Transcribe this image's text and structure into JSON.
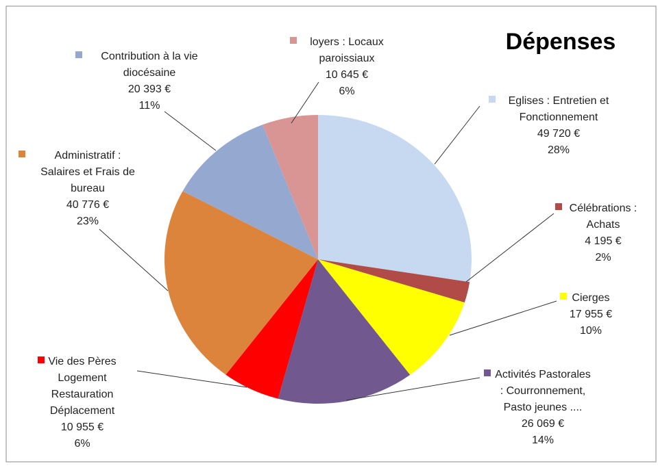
{
  "chart_data": {
    "type": "pie",
    "title": "Dépenses",
    "categories": [
      "Eglises : Entretien et\nFonctionnement",
      "Célébrations :\nAchats",
      "Cierges",
      "Activités Pastorales\n: Courronnement,\nPasto jeunes ....",
      "Vie des Pères\nLogement\nRestauration\nDéplacement",
      "Administratif :\nSalaires et Frais de\nbureau",
      "Contribution à la vie\ndiocésaine",
      "loyers : Locaux\nparoissiaux"
    ],
    "values": [
      49720,
      4195,
      17955,
      26069,
      10955,
      40776,
      20393,
      10645
    ],
    "value_labels": [
      "49 720 €",
      "4 195 €",
      "17 955 €",
      "26 069 €",
      "10 955 €",
      "40 776 €",
      "20 393 €",
      "10 645 €"
    ],
    "percent_labels": [
      "28%",
      "2%",
      "10%",
      "14%",
      "6%",
      "23%",
      "11%",
      "6%"
    ],
    "colors": [
      "#c6d9f1",
      "#b04b48",
      "#ffff00",
      "#71588f",
      "#ff0000",
      "#dd843c",
      "#95a9d0",
      "#d99594"
    ]
  }
}
